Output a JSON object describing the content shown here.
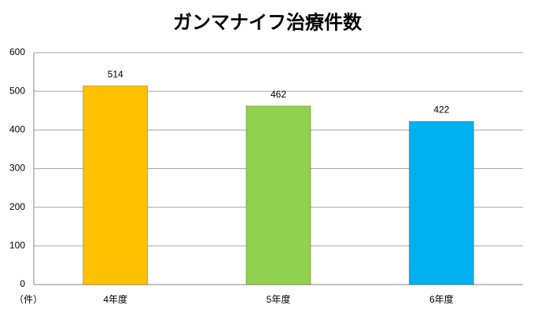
{
  "chart_data": {
    "type": "bar",
    "title": "ガンマナイフ治療件数",
    "categories": [
      "4年度",
      "5年度",
      "6年度"
    ],
    "values": [
      514,
      462,
      422
    ],
    "colors": [
      "#FFC000",
      "#92D050",
      "#00B0F0"
    ],
    "ylim": [
      0,
      600
    ],
    "yticks": [
      0,
      100,
      200,
      300,
      400,
      500,
      600
    ],
    "grid": true,
    "unit_label": "（件）"
  }
}
